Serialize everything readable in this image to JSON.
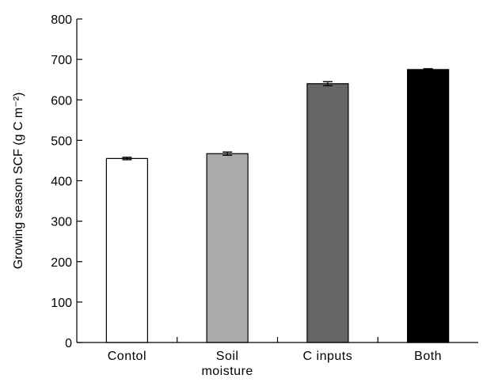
{
  "chart_data": {
    "type": "bar",
    "categories": [
      {
        "lines": [
          "Contol"
        ],
        "color": "#ffffff"
      },
      {
        "lines": [
          "Soil",
          "moisture"
        ],
        "color": "#aaaaaa"
      },
      {
        "lines": [
          "C inputs"
        ],
        "color": "#666666"
      },
      {
        "lines": [
          "Both"
        ],
        "color": "#000000"
      }
    ],
    "values": [
      455,
      467,
      640,
      675
    ],
    "errors": [
      3,
      4,
      5,
      2
    ],
    "ylabel": "Growing season SCF (g C m⁻²)",
    "ylim": [
      0,
      800
    ],
    "yticks": [
      0,
      100,
      200,
      300,
      400,
      500,
      600,
      700,
      800
    ],
    "grid": false
  }
}
